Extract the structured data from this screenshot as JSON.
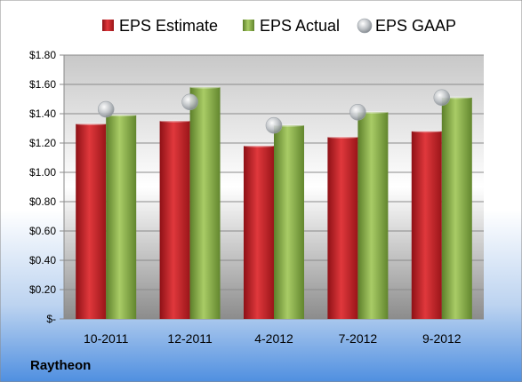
{
  "company": "Raytheon",
  "chart_data": {
    "type": "bar",
    "categories": [
      "10-2011",
      "12-2011",
      "4-2012",
      "7-2012",
      "9-2012"
    ],
    "series": [
      {
        "name": "EPS Estimate",
        "kind": "bar",
        "color": "#c8262b",
        "values": [
          1.33,
          1.35,
          1.18,
          1.24,
          1.28
        ]
      },
      {
        "name": "EPS Actual",
        "kind": "bar",
        "color": "#8cb04a",
        "values": [
          1.39,
          1.58,
          1.32,
          1.41,
          1.51
        ]
      },
      {
        "name": "EPS GAAP",
        "kind": "marker",
        "color": "#b4b8bc",
        "values": [
          1.43,
          1.48,
          1.32,
          1.41,
          1.51
        ]
      }
    ],
    "ylim": [
      0,
      1.8
    ],
    "yticks": [
      0,
      0.2,
      0.4,
      0.6,
      0.8,
      1.0,
      1.2,
      1.4,
      1.6,
      1.8
    ],
    "ytick_labels": [
      "$-",
      "$0.20",
      "$0.40",
      "$0.60",
      "$0.80",
      "$1.00",
      "$1.20",
      "$1.40",
      "$1.60",
      "$1.80"
    ],
    "legend_position": "top",
    "grid": true
  }
}
